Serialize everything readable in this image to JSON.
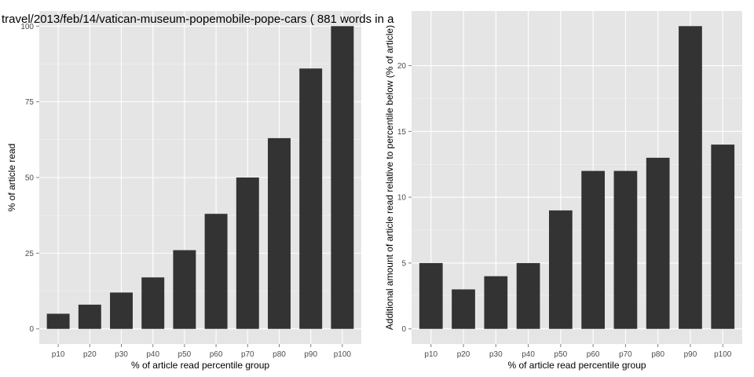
{
  "page_title": "travel/2013/feb/14/vatican-museum-popemobile-pope-cars ( 881 words in a",
  "colors": {
    "panel_bg": "#e5e5e5",
    "grid_major": "#ffffff",
    "bar": "#333333",
    "tick": "#7f7f7f"
  },
  "chart_data": [
    {
      "type": "bar",
      "categories": [
        "p10",
        "p20",
        "p30",
        "p40",
        "p50",
        "p60",
        "p70",
        "p80",
        "p90",
        "p100"
      ],
      "values": [
        5,
        8,
        12,
        17,
        26,
        38,
        50,
        63,
        86,
        100
      ],
      "yticks": [
        0,
        25,
        50,
        75,
        100
      ],
      "ylim": [
        -5,
        105
      ],
      "xlabel": "% of article read percentile group",
      "ylabel": "% of article read",
      "grid": true
    },
    {
      "type": "bar",
      "categories": [
        "p10",
        "p20",
        "p30",
        "p40",
        "p50",
        "p60",
        "p70",
        "p80",
        "p90",
        "p100"
      ],
      "values": [
        5,
        3,
        4,
        5,
        9,
        12,
        12,
        13,
        23,
        14
      ],
      "yticks": [
        0,
        5,
        10,
        15,
        20
      ],
      "ylim": [
        -1.15,
        24.15
      ],
      "xlabel": "% of article read percentile group",
      "ylabel": "Additional amount of article read relative to percentile below (% of article)",
      "grid": true
    }
  ]
}
